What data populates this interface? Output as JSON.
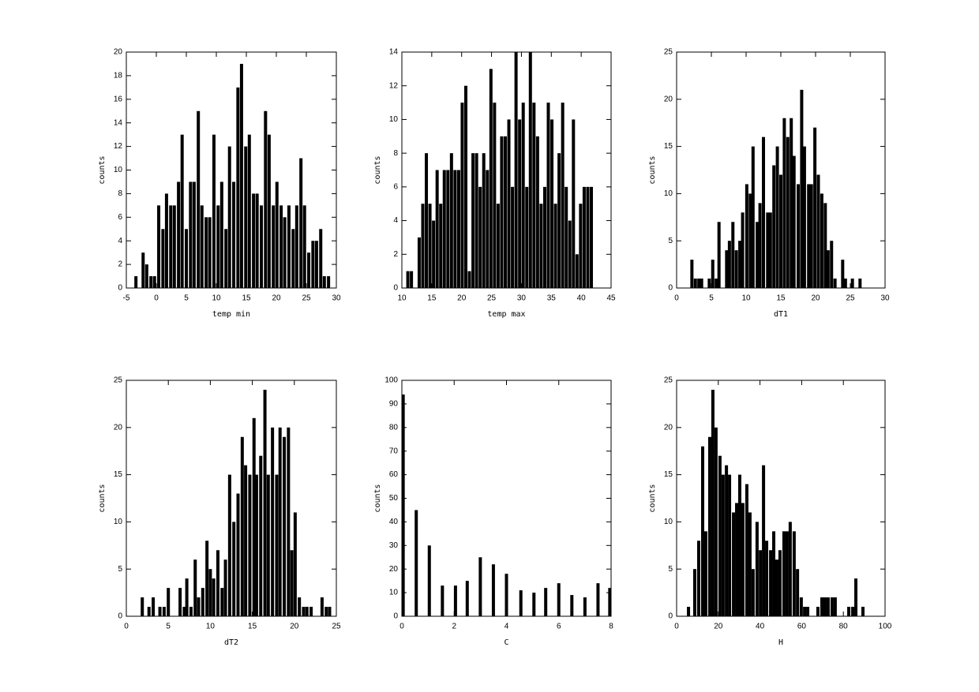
{
  "chart_data": [
    {
      "type": "bar",
      "xlabel": "temp min",
      "ylabel": "counts",
      "color": "#000000",
      "xlim": [
        -5,
        30
      ],
      "ylim": [
        0,
        20
      ],
      "xticks": [
        -5,
        0,
        5,
        10,
        15,
        20,
        25,
        30
      ],
      "yticks": [
        0,
        2,
        4,
        6,
        8,
        10,
        12,
        14,
        16,
        18,
        20
      ],
      "x": [
        -3.4,
        -2.2,
        -1.6,
        -0.9,
        -0.3,
        0.4,
        1.1,
        1.7,
        2.4,
        3.0,
        3.7,
        4.3,
        5.0,
        5.7,
        6.3,
        7.0,
        7.6,
        8.3,
        8.9,
        9.6,
        10.3,
        10.9,
        11.6,
        12.2,
        12.9,
        13.6,
        14.2,
        14.9,
        15.5,
        16.2,
        16.8,
        17.5,
        18.2,
        18.8,
        19.5,
        20.1,
        20.8,
        21.4,
        22.1,
        22.8,
        23.4,
        24.1,
        24.7,
        25.4,
        26.1,
        26.7,
        27.4,
        28.0,
        28.7
      ],
      "values": [
        1,
        3,
        2,
        1,
        1,
        7,
        5,
        8,
        7,
        7,
        9,
        13,
        5,
        9,
        9,
        15,
        7,
        6,
        6,
        13,
        7,
        9,
        5,
        12,
        9,
        17,
        19,
        12,
        13,
        8,
        8,
        7,
        15,
        13,
        7,
        9,
        7,
        6,
        7,
        5,
        7,
        11,
        7,
        3,
        4,
        4,
        5,
        1,
        1
      ]
    },
    {
      "type": "bar",
      "xlabel": "temp max",
      "ylabel": "counts",
      "color": "#000000",
      "xlim": [
        10,
        45
      ],
      "ylim": [
        0,
        14
      ],
      "xticks": [
        10,
        15,
        20,
        25,
        30,
        35,
        40,
        45
      ],
      "yticks": [
        0,
        2,
        4,
        6,
        8,
        10,
        12,
        14
      ],
      "x": [
        11.0,
        11.6,
        12.9,
        13.5,
        14.1,
        14.7,
        15.3,
        15.9,
        16.5,
        17.1,
        17.7,
        18.3,
        18.9,
        19.5,
        20.1,
        20.7,
        21.3,
        21.9,
        22.5,
        23.1,
        23.7,
        24.3,
        24.9,
        25.5,
        26.1,
        26.7,
        27.3,
        27.9,
        28.5,
        29.1,
        29.7,
        30.3,
        30.9,
        31.5,
        32.1,
        32.7,
        33.3,
        33.9,
        34.5,
        35.1,
        35.7,
        36.3,
        36.9,
        37.5,
        38.1,
        38.7,
        39.3,
        39.9,
        40.5,
        41.1,
        41.7
      ],
      "values": [
        1,
        1,
        3,
        5,
        8,
        5,
        4,
        7,
        5,
        7,
        7,
        8,
        7,
        7,
        11,
        12,
        1,
        8,
        8,
        6,
        8,
        7,
        13,
        11,
        5,
        9,
        9,
        10,
        6,
        14,
        10,
        11,
        6,
        14,
        11,
        9,
        5,
        6,
        11,
        10,
        5,
        8,
        11,
        6,
        4,
        10,
        2,
        5,
        6,
        6,
        6
      ]
    },
    {
      "type": "bar",
      "xlabel": "dT1",
      "ylabel": "counts",
      "color": "#000000",
      "xlim": [
        0,
        30
      ],
      "ylim": [
        0,
        25
      ],
      "xticks": [
        0,
        5,
        10,
        15,
        20,
        25,
        30
      ],
      "yticks": [
        0,
        5,
        10,
        15,
        20,
        25
      ],
      "x": [
        2.2,
        2.7,
        3.2,
        3.6,
        4.7,
        5.2,
        5.7,
        6.1,
        7.2,
        7.6,
        8.1,
        8.6,
        9.1,
        9.5,
        10.1,
        10.6,
        11.0,
        11.6,
        12.0,
        12.5,
        13.1,
        13.5,
        14.0,
        14.5,
        15.0,
        15.5,
        16.0,
        16.5,
        16.9,
        17.5,
        18.0,
        18.4,
        19.0,
        19.4,
        19.9,
        20.4,
        20.9,
        21.4,
        21.8,
        22.3,
        22.8,
        23.9,
        24.3,
        25.3,
        26.4
      ],
      "values": [
        3,
        1,
        1,
        1,
        1,
        3,
        1,
        7,
        4,
        5,
        7,
        4,
        5,
        8,
        11,
        10,
        15,
        7,
        9,
        16,
        8,
        8,
        13,
        15,
        12,
        18,
        16,
        18,
        14,
        11,
        21,
        15,
        11,
        11,
        17,
        12,
        10,
        9,
        4,
        5,
        1,
        3,
        1,
        1,
        1
      ]
    },
    {
      "type": "bar",
      "xlabel": "dT2",
      "ylabel": "counts",
      "color": "#000000",
      "xlim": [
        0,
        25
      ],
      "ylim": [
        0,
        25
      ],
      "xticks": [
        0,
        5,
        10,
        15,
        20,
        25
      ],
      "yticks": [
        0,
        5,
        10,
        15,
        20,
        25
      ],
      "x": [
        1.9,
        2.7,
        3.2,
        4.0,
        4.5,
        5.0,
        6.4,
        6.9,
        7.2,
        7.7,
        8.2,
        8.6,
        9.1,
        9.6,
        10.0,
        10.4,
        10.9,
        11.4,
        11.8,
        12.3,
        12.8,
        13.3,
        13.8,
        14.2,
        14.7,
        15.2,
        15.5,
        16.0,
        16.5,
        16.9,
        17.4,
        17.9,
        18.3,
        18.8,
        19.3,
        19.7,
        20.1,
        20.6,
        21.1,
        21.5,
        22.0,
        23.3,
        23.8,
        24.2
      ],
      "values": [
        2,
        1,
        2,
        1,
        1,
        3,
        3,
        1,
        4,
        1,
        6,
        2,
        3,
        8,
        5,
        4,
        7,
        3,
        6,
        15,
        10,
        13,
        19,
        16,
        15,
        21,
        15,
        17,
        24,
        15,
        20,
        15,
        20,
        19,
        20,
        7,
        11,
        2,
        1,
        1,
        1,
        2,
        1,
        1
      ]
    },
    {
      "type": "bar",
      "xlabel": "C",
      "ylabel": "counts",
      "color": "#000000",
      "xlim": [
        0,
        8
      ],
      "ylim": [
        0,
        100
      ],
      "xticks": [
        0,
        2,
        4,
        6,
        8
      ],
      "yticks": [
        0,
        10,
        20,
        30,
        40,
        50,
        60,
        70,
        80,
        90,
        100
      ],
      "x": [
        0.05,
        0.55,
        1.05,
        1.55,
        2.05,
        2.5,
        3.0,
        3.5,
        4.0,
        4.55,
        5.05,
        5.5,
        6.0,
        6.5,
        7.0,
        7.5,
        7.95
      ],
      "values": [
        94,
        45,
        30,
        13,
        13,
        15,
        25,
        22,
        18,
        11,
        10,
        12,
        14,
        9,
        8,
        14,
        12
      ]
    },
    {
      "type": "bar",
      "xlabel": "H",
      "ylabel": "counts",
      "color": "#000000",
      "xlim": [
        0,
        100
      ],
      "ylim": [
        0,
        25
      ],
      "xticks": [
        0,
        20,
        40,
        60,
        80,
        100
      ],
      "yticks": [
        0,
        5,
        10,
        15,
        20,
        25
      ],
      "x": [
        5.7,
        8.7,
        10.6,
        12.5,
        14.0,
        15.9,
        17.4,
        18.9,
        20.8,
        22.3,
        23.9,
        25.4,
        27.3,
        28.8,
        30.3,
        31.8,
        33.7,
        35.2,
        36.7,
        38.6,
        40.2,
        41.7,
        43.2,
        45.1,
        46.6,
        48.1,
        49.6,
        51.5,
        53.0,
        54.5,
        56.4,
        58.0,
        59.8,
        61.4,
        62.9,
        67.8,
        69.7,
        71.2,
        72.7,
        74.6,
        76.1,
        82.6,
        84.5,
        86.0,
        89.4
      ],
      "values": [
        1,
        5,
        8,
        18,
        9,
        19,
        24,
        20,
        17,
        15,
        16,
        15,
        11,
        12,
        15,
        12,
        14,
        11,
        5,
        10,
        7,
        16,
        8,
        7,
        9,
        6,
        7,
        9,
        9,
        10,
        9,
        5,
        2,
        1,
        1,
        1,
        2,
        2,
        2,
        2,
        2,
        1,
        1,
        4,
        1
      ]
    }
  ]
}
